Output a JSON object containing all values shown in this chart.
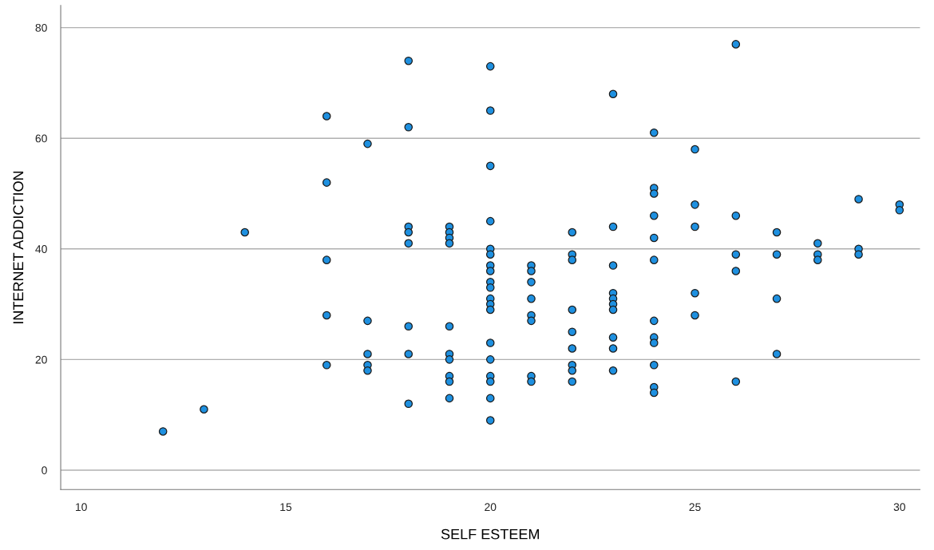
{
  "chart_data": {
    "type": "scatter",
    "xlabel": "SELF ESTEEM",
    "ylabel": "INTERNET ADDICTION",
    "marker": "circle",
    "grid": "y",
    "legend": false,
    "xlim": [
      9.5,
      30.5
    ],
    "ylim": [
      -3.5,
      84
    ],
    "xticks": [
      10,
      15,
      20,
      25,
      30
    ],
    "yticks": [
      0,
      20,
      40,
      60,
      80
    ],
    "series": [
      {
        "color": "#1e90e0",
        "x": [
          12,
          13,
          14,
          16,
          16,
          16,
          16,
          16,
          17,
          17,
          17,
          17,
          17,
          18,
          18,
          18,
          18,
          18,
          18,
          18,
          18,
          19,
          19,
          19,
          19,
          19,
          19,
          19,
          19,
          19,
          19,
          20,
          20,
          20,
          20,
          20,
          20,
          20,
          20,
          20,
          20,
          20,
          20,
          20,
          20,
          20,
          20,
          20,
          20,
          20,
          21,
          21,
          21,
          21,
          21,
          21,
          21,
          21,
          22,
          22,
          22,
          22,
          22,
          22,
          22,
          22,
          22,
          23,
          23,
          23,
          23,
          23,
          23,
          23,
          23,
          23,
          23,
          24,
          24,
          24,
          24,
          24,
          24,
          24,
          24,
          24,
          24,
          24,
          24,
          25,
          25,
          25,
          25,
          25,
          26,
          26,
          26,
          26,
          26,
          27,
          27,
          27,
          27,
          28,
          28,
          28,
          29,
          29,
          29,
          30,
          30
        ],
        "values": [
          7,
          11,
          43,
          64,
          52,
          38,
          28,
          19,
          59,
          27,
          21,
          19,
          18,
          74,
          62,
          44,
          43,
          41,
          26,
          21,
          12,
          44,
          43,
          42,
          41,
          26,
          21,
          20,
          17,
          16,
          13,
          73,
          65,
          55,
          45,
          40,
          39,
          37,
          36,
          34,
          33,
          31,
          30,
          29,
          23,
          20,
          17,
          16,
          13,
          9,
          37,
          36,
          34,
          31,
          28,
          27,
          17,
          16,
          43,
          39,
          38,
          29,
          25,
          22,
          19,
          18,
          16,
          68,
          44,
          37,
          32,
          31,
          30,
          29,
          24,
          22,
          18,
          61,
          51,
          50,
          46,
          42,
          38,
          27,
          24,
          23,
          19,
          15,
          14,
          58,
          48,
          44,
          32,
          28,
          77,
          46,
          39,
          36,
          16,
          43,
          39,
          31,
          21,
          41,
          39,
          38,
          49,
          40,
          39,
          48,
          47
        ]
      }
    ]
  }
}
